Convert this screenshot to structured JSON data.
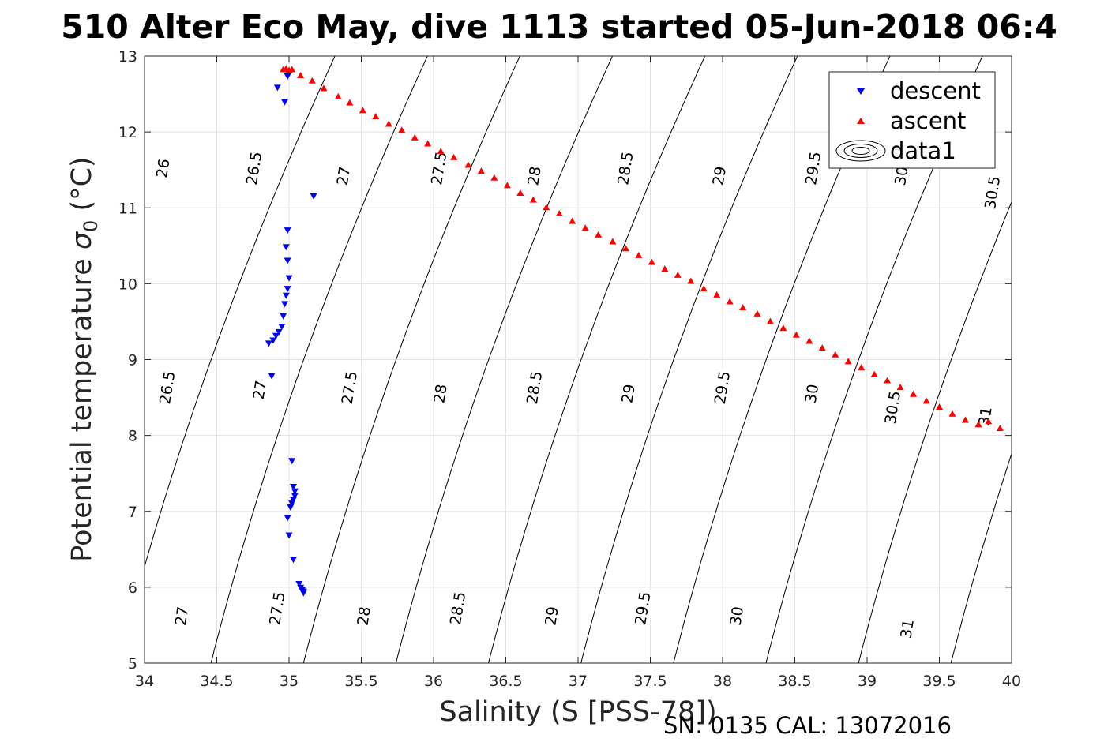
{
  "chart_data": {
    "type": "scatter",
    "title": "510 Alter Eco May, dive 1113 started 05-Jun-2018 06:4",
    "xlabel": "Salinity (S [PSS-78])",
    "ylabel_main": "Potential temperature ",
    "ylabel_sigma": "σ",
    "ylabel_sub": "0",
    "ylabel_unit": " (°C)",
    "xlim": [
      34,
      40
    ],
    "ylim": [
      5,
      13
    ],
    "x_ticks": [
      34,
      34.5,
      35,
      35.5,
      36,
      36.5,
      37,
      37.5,
      38,
      38.5,
      39,
      39.5,
      40
    ],
    "x_tick_labels": [
      "34",
      "34.5",
      "35",
      "35.5",
      "36",
      "36.5",
      "37",
      "37.5",
      "38",
      "38.5",
      "39",
      "39.5",
      "40"
    ],
    "y_ticks": [
      5,
      6,
      7,
      8,
      9,
      10,
      11,
      12,
      13
    ],
    "y_tick_labels": [
      "5",
      "6",
      "7",
      "8",
      "9",
      "10",
      "11",
      "12",
      "13"
    ],
    "grid": true,
    "legend_position": "top-right",
    "footnote": "SN: 0135  CAL: 13072016",
    "series": [
      {
        "name": "descent",
        "marker": "triangle-down",
        "color": "#0000ff",
        "x": [
          34.92,
          34.97,
          34.99,
          35.17,
          34.99,
          34.98,
          34.99,
          35.0,
          34.99,
          34.98,
          34.97,
          34.96,
          34.95,
          34.93,
          34.91,
          34.89,
          34.86,
          34.88,
          35.02,
          35.03,
          35.04,
          35.04,
          35.03,
          35.02,
          35.01,
          34.99,
          35.0,
          35.03,
          35.07,
          35.08,
          35.09,
          35.1,
          35.1
        ],
        "y": [
          12.58,
          12.39,
          12.73,
          11.15,
          10.7,
          10.48,
          10.3,
          10.07,
          9.93,
          9.84,
          9.73,
          9.57,
          9.43,
          9.36,
          9.31,
          9.25,
          9.21,
          8.78,
          7.66,
          7.32,
          7.26,
          7.2,
          7.15,
          7.1,
          7.05,
          6.91,
          6.68,
          6.36,
          6.04,
          5.99,
          5.96,
          5.94,
          5.92
        ]
      },
      {
        "name": "ascent",
        "marker": "triangle-up",
        "color": "#ff0000",
        "x": [
          34.96,
          34.98,
          35.0,
          35.02,
          35.08,
          35.16,
          35.24,
          35.34,
          35.42,
          35.51,
          35.6,
          35.69,
          35.78,
          35.87,
          35.96,
          36.05,
          36.14,
          36.24,
          36.33,
          36.42,
          36.51,
          36.6,
          36.69,
          36.78,
          36.87,
          36.96,
          37.05,
          37.14,
          37.24,
          37.33,
          37.42,
          37.51,
          37.6,
          37.69,
          37.78,
          37.87,
          37.96,
          38.05,
          38.14,
          38.24,
          38.33,
          38.42,
          38.51,
          38.6,
          38.69,
          38.78,
          38.87,
          38.96,
          39.05,
          39.14,
          39.23,
          39.32,
          39.41,
          39.5,
          39.59,
          39.68,
          39.77,
          39.84,
          39.92
        ],
        "y": [
          12.83,
          12.84,
          12.82,
          12.83,
          12.75,
          12.68,
          12.58,
          12.47,
          12.39,
          12.29,
          12.21,
          12.11,
          12.03,
          11.93,
          11.85,
          11.75,
          11.67,
          11.57,
          11.49,
          11.4,
          11.3,
          11.2,
          11.11,
          11.01,
          10.93,
          10.83,
          10.74,
          10.65,
          10.56,
          10.47,
          10.38,
          10.29,
          10.2,
          10.12,
          10.04,
          9.94,
          9.86,
          9.77,
          9.69,
          9.61,
          9.51,
          9.42,
          9.33,
          9.25,
          9.16,
          9.07,
          8.98,
          8.9,
          8.81,
          8.73,
          8.64,
          8.55,
          8.46,
          8.38,
          8.29,
          8.21,
          8.15,
          8.19,
          8.1
        ]
      },
      {
        "name": "data1",
        "marker": "contour",
        "color": "#000000",
        "levels": [
          26,
          26.5,
          27,
          27.5,
          28,
          28.5,
          29,
          29.5,
          30,
          30.5,
          31
        ]
      }
    ],
    "contour_labels": [
      {
        "text": "26",
        "x": 34.13,
        "y": 11.52
      },
      {
        "text": "26.5",
        "x": 34.76,
        "y": 11.52
      },
      {
        "text": "27",
        "x": 35.38,
        "y": 11.42
      },
      {
        "text": "27.5",
        "x": 36.04,
        "y": 11.52
      },
      {
        "text": "28",
        "x": 36.7,
        "y": 11.42
      },
      {
        "text": "28.5",
        "x": 37.33,
        "y": 11.52
      },
      {
        "text": "29",
        "x": 37.98,
        "y": 11.42
      },
      {
        "text": "29.5",
        "x": 38.63,
        "y": 11.52
      },
      {
        "text": "30",
        "x": 39.24,
        "y": 11.42
      },
      {
        "text": "30.5",
        "x": 39.87,
        "y": 11.2
      },
      {
        "text": "26.5",
        "x": 34.16,
        "y": 8.63
      },
      {
        "text": "27",
        "x": 34.8,
        "y": 8.6
      },
      {
        "text": "27.5",
        "x": 35.42,
        "y": 8.63
      },
      {
        "text": "28",
        "x": 36.05,
        "y": 8.55
      },
      {
        "text": "28.5",
        "x": 36.7,
        "y": 8.63
      },
      {
        "text": "29",
        "x": 37.35,
        "y": 8.55
      },
      {
        "text": "29.5",
        "x": 38.0,
        "y": 8.63
      },
      {
        "text": "30",
        "x": 38.62,
        "y": 8.55
      },
      {
        "text": "30.5",
        "x": 39.18,
        "y": 8.37
      },
      {
        "text": "31",
        "x": 39.82,
        "y": 8.25
      },
      {
        "text": "27",
        "x": 34.26,
        "y": 5.62
      },
      {
        "text": "27.5",
        "x": 34.92,
        "y": 5.72
      },
      {
        "text": "28",
        "x": 35.52,
        "y": 5.62
      },
      {
        "text": "28.5",
        "x": 36.17,
        "y": 5.72
      },
      {
        "text": "29",
        "x": 36.82,
        "y": 5.62
      },
      {
        "text": "29.5",
        "x": 37.45,
        "y": 5.72
      },
      {
        "text": "30",
        "x": 38.1,
        "y": 5.62
      },
      {
        "text": "31",
        "x": 39.28,
        "y": 5.45
      }
    ]
  }
}
